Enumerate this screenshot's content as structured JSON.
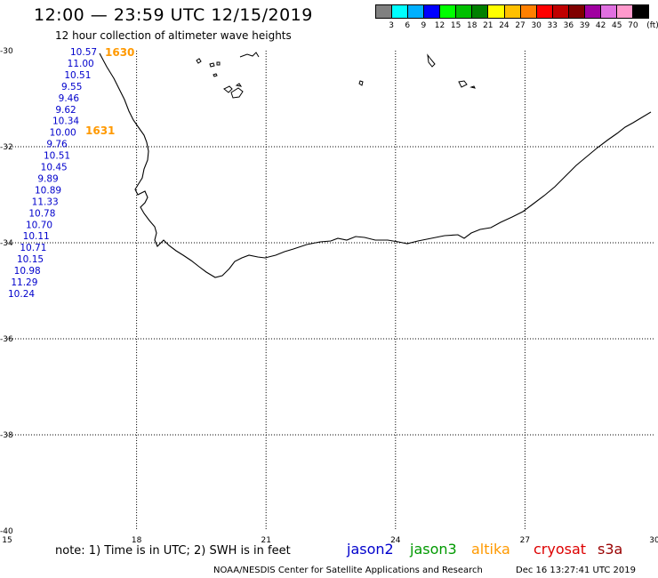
{
  "header": {
    "title": "12:00 — 23:59 UTC 12/15/2019",
    "subtitle": "12 hour collection of altimeter wave heights"
  },
  "legend": {
    "unit": "(ft)",
    "labels": [
      "3",
      "6",
      "9",
      "12",
      "15",
      "18",
      "21",
      "24",
      "27",
      "30",
      "33",
      "36",
      "39",
      "42",
      "45",
      "70"
    ],
    "colors": [
      "#808080",
      "#00ffff",
      "#00b0ff",
      "#0000ff",
      "#00ff00",
      "#00c000",
      "#008000",
      "#ffff00",
      "#ffc000",
      "#ff8000",
      "#ff0000",
      "#c00000",
      "#800000",
      "#a000a0",
      "#e070e0",
      "#ff99cc",
      "#000000"
    ]
  },
  "map": {
    "lat_ticks": [
      "-30",
      "-32",
      "-34",
      "-36",
      "-38",
      "-40"
    ],
    "lon_ticks": [
      "15",
      "18",
      "21",
      "24",
      "27",
      "30"
    ],
    "swh_values": [
      "10.57",
      "11.00",
      "10.51",
      "9.55",
      "9.46",
      "9.62",
      "10.34",
      "10.00",
      "9.76",
      "10.51",
      "10.45",
      "9.89",
      "10.89",
      "11.33",
      "10.78",
      "10.70",
      "10.11",
      "10.71",
      "10.15",
      "10.98",
      "11.29",
      "10.24"
    ],
    "time_labels": [
      "1630",
      "1631"
    ]
  },
  "footer": {
    "note": "note: 1) Time is in UTC; 2) SWH is in feet",
    "satellites": [
      {
        "name": "jason2",
        "color": "#0000cc"
      },
      {
        "name": "jason3",
        "color": "#009900"
      },
      {
        "name": "altika",
        "color": "#ff9900"
      },
      {
        "name": "cryosat",
        "color": "#dd0000"
      },
      {
        "name": "s3a",
        "color": "#990000"
      }
    ],
    "credit": "NOAA/NESDIS Center for Satellite Applications and Research",
    "timestamp": "Dec 16 13:27:41 UTC 2019"
  }
}
